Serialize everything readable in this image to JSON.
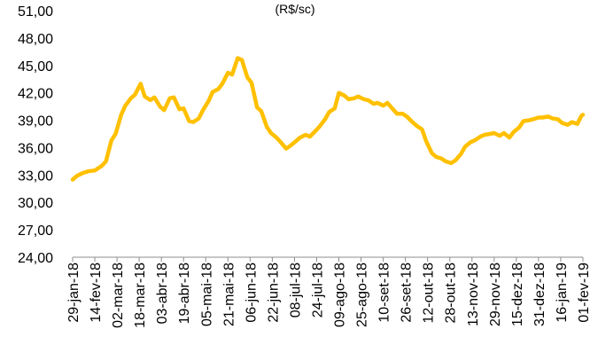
{
  "chart_data": {
    "type": "line",
    "title": "",
    "subtitle": "(R$/sc)",
    "xlabel": "",
    "ylabel": "",
    "ylim": [
      24,
      51
    ],
    "yticks": [
      "24,00",
      "27,00",
      "30,00",
      "33,00",
      "36,00",
      "39,00",
      "42,00",
      "45,00",
      "48,00",
      "51,00"
    ],
    "grid": false,
    "legend": "none",
    "line_color": "#FFC000",
    "categories": [
      "29-jan-18",
      "14-fev-18",
      "02-mar-18",
      "18-mar-18",
      "03-abr-18",
      "19-abr-18",
      "05-mai-18",
      "21-mai-18",
      "06-jun-18",
      "22-jun-18",
      "08-jul-18",
      "24-jul-18",
      "09-ago-18",
      "25-ago-18",
      "10-set-18",
      "26-set-18",
      "12-out-18",
      "28-out-18",
      "13-nov-18",
      "29-nov-18",
      "15-dez-18",
      "31-dez-18",
      "16-jan-19",
      "01-fev-19"
    ],
    "series": [
      {
        "x": [
          "2018-01-29",
          "2018-02-01",
          "2018-02-05",
          "2018-02-09",
          "2018-02-14",
          "2018-02-19",
          "2018-02-22",
          "2018-02-26",
          "2018-03-01",
          "2018-03-05",
          "2018-03-08",
          "2018-03-12",
          "2018-03-15",
          "2018-03-19",
          "2018-03-22",
          "2018-03-26",
          "2018-03-29",
          "2018-04-02",
          "2018-04-05",
          "2018-04-09",
          "2018-04-12",
          "2018-04-16",
          "2018-04-19",
          "2018-04-23",
          "2018-04-26",
          "2018-04-30",
          "2018-05-03",
          "2018-05-07",
          "2018-05-10",
          "2018-05-14",
          "2018-05-17",
          "2018-05-21",
          "2018-05-24",
          "2018-05-28",
          "2018-05-31",
          "2018-06-04",
          "2018-06-07",
          "2018-06-11",
          "2018-06-14",
          "2018-06-18",
          "2018-06-21",
          "2018-06-25",
          "2018-06-28",
          "2018-07-02",
          "2018-07-05",
          "2018-07-09",
          "2018-07-12",
          "2018-07-16",
          "2018-07-19",
          "2018-07-23",
          "2018-07-26",
          "2018-07-30",
          "2018-08-02",
          "2018-08-06",
          "2018-08-09",
          "2018-08-13",
          "2018-08-16",
          "2018-08-20",
          "2018-08-23",
          "2018-08-27",
          "2018-08-30",
          "2018-09-03",
          "2018-09-06",
          "2018-09-10",
          "2018-09-13",
          "2018-09-17",
          "2018-09-20",
          "2018-09-24",
          "2018-09-27",
          "2018-10-01",
          "2018-10-04",
          "2018-10-08",
          "2018-10-11",
          "2018-10-15",
          "2018-10-18",
          "2018-10-22",
          "2018-10-25",
          "2018-10-29",
          "2018-11-01",
          "2018-11-05",
          "2018-11-08",
          "2018-11-12",
          "2018-11-15",
          "2018-11-19",
          "2018-11-22",
          "2018-11-26",
          "2018-11-29",
          "2018-12-03",
          "2018-12-06",
          "2018-12-10",
          "2018-12-13",
          "2018-12-17",
          "2018-12-20",
          "2018-12-24",
          "2018-12-27",
          "2018-12-31",
          "2019-01-03",
          "2019-01-07",
          "2019-01-10",
          "2019-01-14",
          "2019-01-17",
          "2019-01-21",
          "2019-01-24",
          "2019-01-28",
          "2019-01-31",
          "2019-02-01"
        ],
        "values": [
          32.5,
          32.9,
          33.2,
          33.4,
          33.5,
          34.0,
          34.5,
          36.8,
          37.5,
          39.6,
          40.6,
          41.4,
          41.8,
          43.0,
          41.6,
          41.2,
          41.5,
          40.5,
          40.1,
          41.4,
          41.5,
          40.2,
          40.3,
          38.9,
          38.8,
          39.2,
          40.1,
          41.1,
          42.1,
          42.4,
          43.0,
          44.2,
          44.0,
          45.8,
          45.6,
          43.7,
          43.1,
          40.4,
          40.0,
          38.3,
          37.6,
          37.1,
          36.6,
          35.9,
          36.2,
          36.7,
          37.1,
          37.4,
          37.2,
          37.8,
          38.3,
          39.1,
          39.9,
          40.3,
          42.0,
          41.7,
          41.3,
          41.4,
          41.6,
          41.3,
          41.2,
          40.8,
          40.9,
          40.6,
          40.9,
          40.2,
          39.7,
          39.7,
          39.4,
          38.8,
          38.4,
          38.0,
          36.7,
          35.4,
          35.0,
          34.8,
          34.5,
          34.3,
          34.6,
          35.3,
          36.1,
          36.6,
          36.8,
          37.2,
          37.4,
          37.5,
          37.6,
          37.3,
          37.6,
          37.1,
          37.7,
          38.2,
          38.9,
          39.0,
          39.1,
          39.3,
          39.3,
          39.4,
          39.2,
          39.1,
          38.7,
          38.5,
          38.8,
          38.6,
          39.5,
          39.6
        ]
      }
    ]
  }
}
